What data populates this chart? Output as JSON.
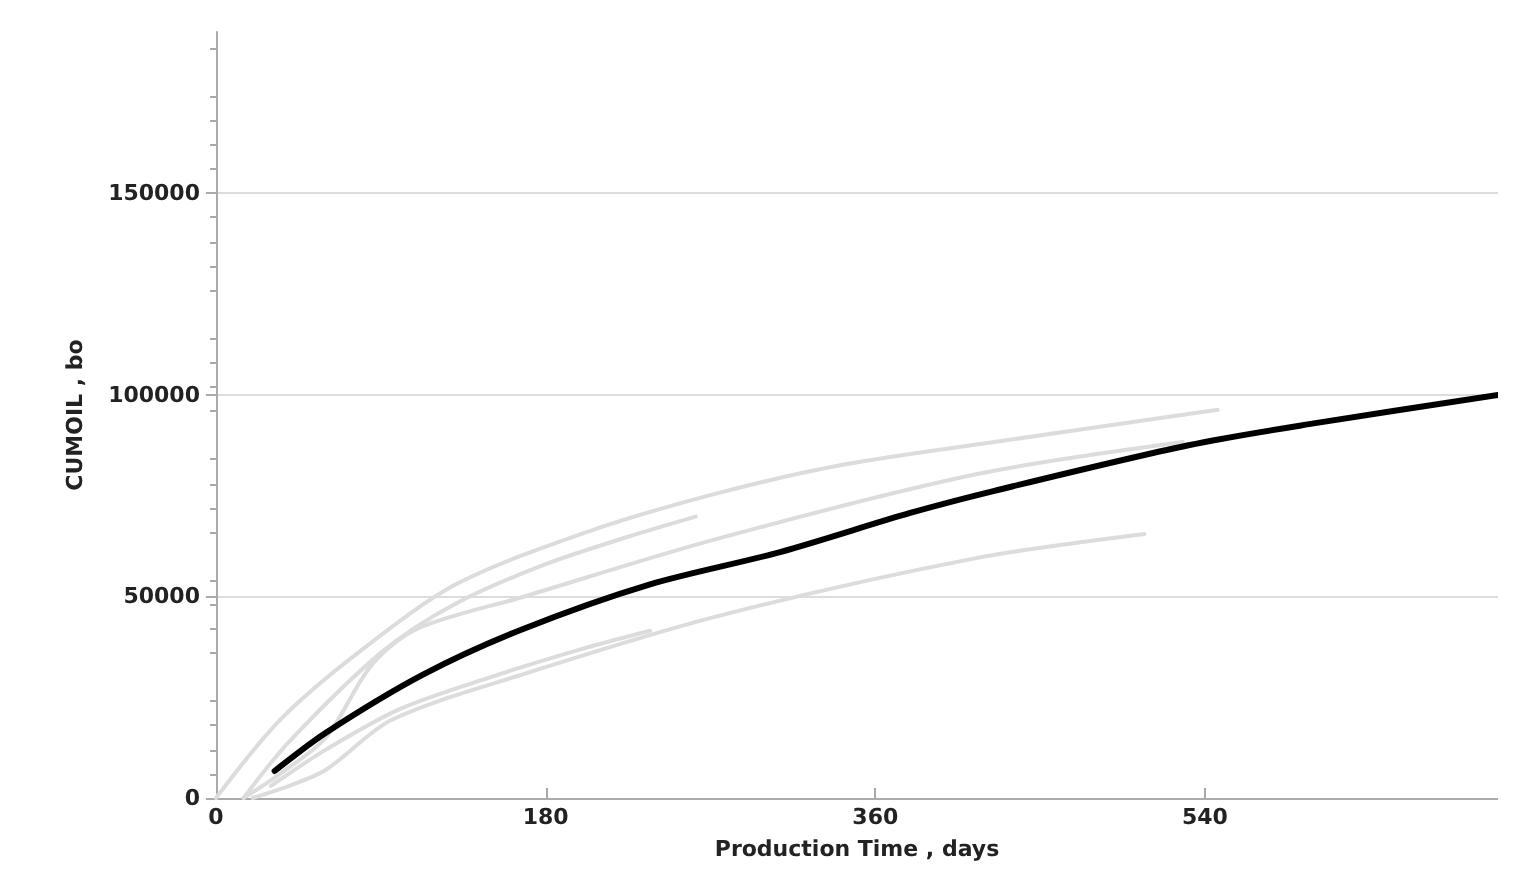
{
  "chart_data": {
    "type": "line",
    "xlabel": "Production Time , days",
    "ylabel": "CUMOIL , bo",
    "xlim": [
      0,
      700
    ],
    "xticks": [
      0,
      180,
      360,
      540
    ],
    "ylim": [
      0,
      190000
    ],
    "yticks": [
      0,
      50000,
      100000,
      150000
    ],
    "grid": "y",
    "marker": "none",
    "line_style": "solid",
    "series": [
      {
        "color": "#dcdcdc",
        "x": [
          0,
          35,
          78,
          131,
          202,
          273,
          343,
          425,
          547
        ],
        "values": [
          0,
          19400,
          36200,
          53000,
          65900,
          75500,
          82700,
          88300,
          96300
        ]
      },
      {
        "color": "#dcdcdc",
        "x": [
          15,
          40,
          90,
          130,
          180,
          230,
          262
        ],
        "values": [
          0,
          14000,
          36000,
          48000,
          58000,
          65500,
          69800
        ]
      },
      {
        "color": "#dcdcdc",
        "x": [
          15,
          35,
          60,
          85,
          110,
          167,
          273,
          415,
          528
        ],
        "values": [
          0,
          6000,
          15000,
          33000,
          42000,
          49800,
          64200,
          80300,
          88300
        ]
      },
      {
        "color": "#dcdcdc",
        "x": [
          20,
          40,
          60,
          96,
          167,
          273,
          415,
          507
        ],
        "values": [
          0,
          3000,
          7000,
          19400,
          30600,
          45000,
          59500,
          65500
        ]
      },
      {
        "color": "#dcdcdc",
        "x": [
          30,
          60,
          100,
          150,
          200,
          237
        ],
        "values": [
          3000,
          12000,
          22000,
          30000,
          37000,
          41500
        ]
      },
      {
        "color": "#000000",
        "x": [
          32,
          60,
          113,
          167,
          237,
          308,
          379,
          425,
          531,
          602,
          700
        ],
        "values": [
          6700,
          16200,
          30600,
          41800,
          53000,
          61000,
          70700,
          76200,
          87500,
          93100,
          100000
        ]
      }
    ]
  }
}
